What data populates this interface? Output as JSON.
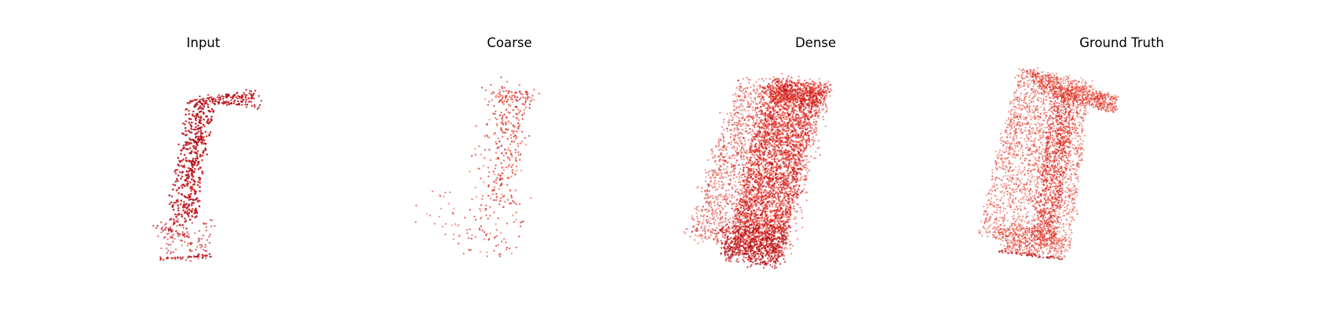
{
  "figure": {
    "panels": [
      {
        "title": "Input",
        "style": "input",
        "colors": [
          "#b2081b",
          "#c41522",
          "#d7261f",
          "#a50f15"
        ]
      },
      {
        "title": "Coarse",
        "style": "coarse",
        "colors": [
          "#cb181d",
          "#de2d26",
          "#ef3b2c",
          "#fb6a4a"
        ]
      },
      {
        "title": "Dense",
        "style": "dense",
        "colors": [
          "#cb181d",
          "#de2d26",
          "#ef3b2c",
          "#e02a22",
          "#f05a45",
          "#b5101a"
        ]
      },
      {
        "title": "Ground Truth",
        "style": "gt",
        "colors": [
          "#de2d26",
          "#ef3b2c",
          "#e8412f",
          "#f26247",
          "#d0201f"
        ]
      }
    ]
  }
}
